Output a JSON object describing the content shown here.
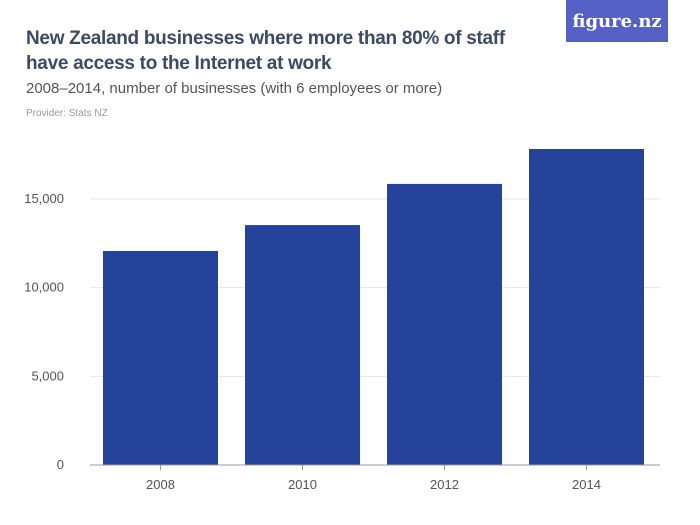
{
  "header": {
    "title": "New Zealand businesses where more than 80% of staff have access to the Internet at work",
    "subtitle": "2008–2014, number of businesses (with 6 employees or more)",
    "provider": "Provider: Stats NZ",
    "logo": "figure.nz"
  },
  "colors": {
    "bar": "#26439c",
    "grid": "#e6e6e6",
    "logo_bg": "#5561c6"
  },
  "chart_data": {
    "type": "bar",
    "title": "New Zealand businesses where more than 80% of staff have access to the Internet at work",
    "subtitle": "2008–2014, number of businesses (with 6 employees or more)",
    "categories": [
      "2008",
      "2010",
      "2012",
      "2014"
    ],
    "values": [
      12070,
      13530,
      15850,
      17820
    ],
    "xlabel": "",
    "ylabel": "",
    "ylim": [
      0,
      18000
    ],
    "yticks": [
      0,
      5000,
      10000,
      15000
    ],
    "ytick_labels": [
      "0",
      "5,000",
      "10,000",
      "15,000"
    ],
    "grid": true,
    "legend": "none"
  }
}
